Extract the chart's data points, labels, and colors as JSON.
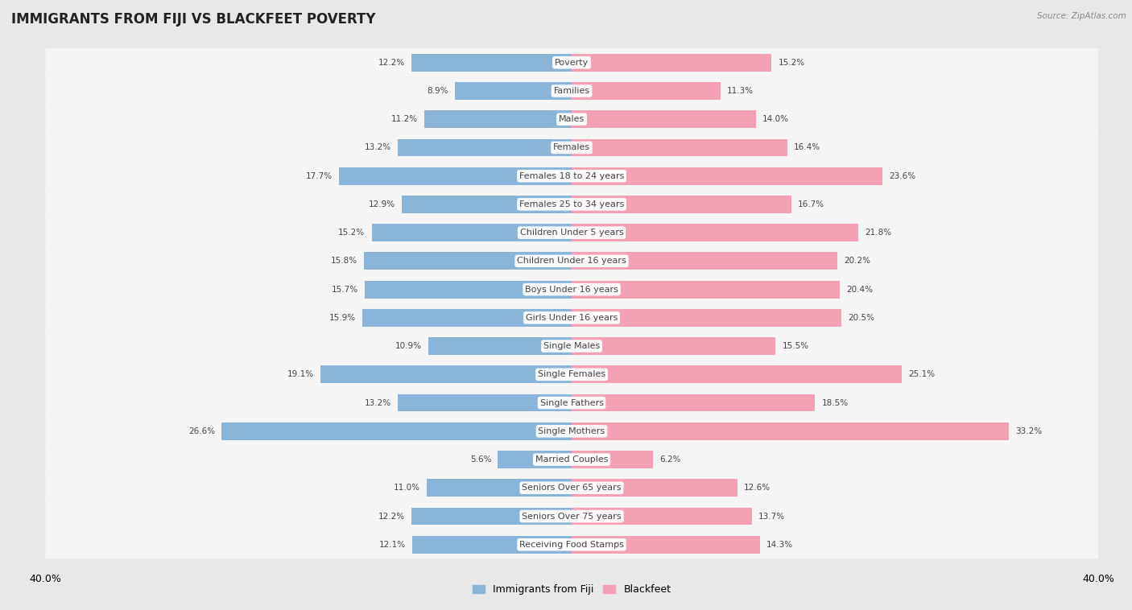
{
  "title": "IMMIGRANTS FROM FIJI VS BLACKFEET POVERTY",
  "source": "Source: ZipAtlas.com",
  "categories": [
    "Poverty",
    "Families",
    "Males",
    "Females",
    "Females 18 to 24 years",
    "Females 25 to 34 years",
    "Children Under 5 years",
    "Children Under 16 years",
    "Boys Under 16 years",
    "Girls Under 16 years",
    "Single Males",
    "Single Females",
    "Single Fathers",
    "Single Mothers",
    "Married Couples",
    "Seniors Over 65 years",
    "Seniors Over 75 years",
    "Receiving Food Stamps"
  ],
  "fiji_values": [
    12.2,
    8.9,
    11.2,
    13.2,
    17.7,
    12.9,
    15.2,
    15.8,
    15.7,
    15.9,
    10.9,
    19.1,
    13.2,
    26.6,
    5.6,
    11.0,
    12.2,
    12.1
  ],
  "blackfeet_values": [
    15.2,
    11.3,
    14.0,
    16.4,
    23.6,
    16.7,
    21.8,
    20.2,
    20.4,
    20.5,
    15.5,
    25.1,
    18.5,
    33.2,
    6.2,
    12.6,
    13.7,
    14.3
  ],
  "fiji_color": "#8ab4d8",
  "blackfeet_color": "#f4a0b5",
  "fiji_label": "Immigrants from Fiji",
  "blackfeet_label": "Blackfeet",
  "x_max": 40.0,
  "background_color": "#e8e8e8",
  "row_color": "#f5f5f5",
  "bar_height": 0.62,
  "title_fontsize": 12,
  "label_fontsize": 8,
  "value_fontsize": 7.5
}
